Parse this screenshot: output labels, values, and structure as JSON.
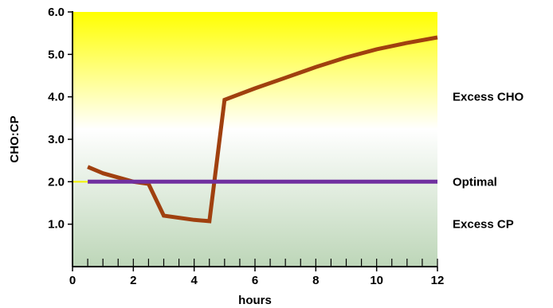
{
  "chart_data": {
    "type": "line",
    "xlabel": "hours",
    "ylabel": "CHO:CP",
    "xlim": [
      0,
      12
    ],
    "ylim": [
      0,
      6
    ],
    "x_ticks": [
      "0",
      "2",
      "4",
      "6",
      "8",
      "10",
      "12"
    ],
    "y_ticks": [
      "1.0",
      "2.0",
      "3.0",
      "4.0",
      "5.0",
      "6.0"
    ],
    "minor_x_ticks_every": 0.5,
    "grid": false,
    "background_gradient": {
      "top": "#ffff00",
      "middle": "#ffffff",
      "bottom": "#bdd6b8"
    },
    "zone_labels": [
      {
        "text": "Excess CHO",
        "y": 4.0
      },
      {
        "text": "Optimal",
        "y": 2.0
      },
      {
        "text": "Excess CP",
        "y": 1.0
      }
    ],
    "series": [
      {
        "color": "#a0400f",
        "x": [
          0.5,
          1,
          2,
          2.5,
          3,
          4,
          4.5,
          5,
          6,
          7,
          8,
          9,
          10,
          11,
          12
        ],
        "y": [
          2.35,
          2.2,
          2.0,
          1.95,
          1.2,
          1.1,
          1.07,
          3.93,
          4.2,
          4.45,
          4.7,
          4.93,
          5.12,
          5.27,
          5.4
        ]
      },
      {
        "color": "#7030a0",
        "x": [
          0.5,
          12
        ],
        "y": [
          2.0,
          2.0
        ]
      }
    ],
    "optimal_left_stub_color": "#f2f200"
  }
}
